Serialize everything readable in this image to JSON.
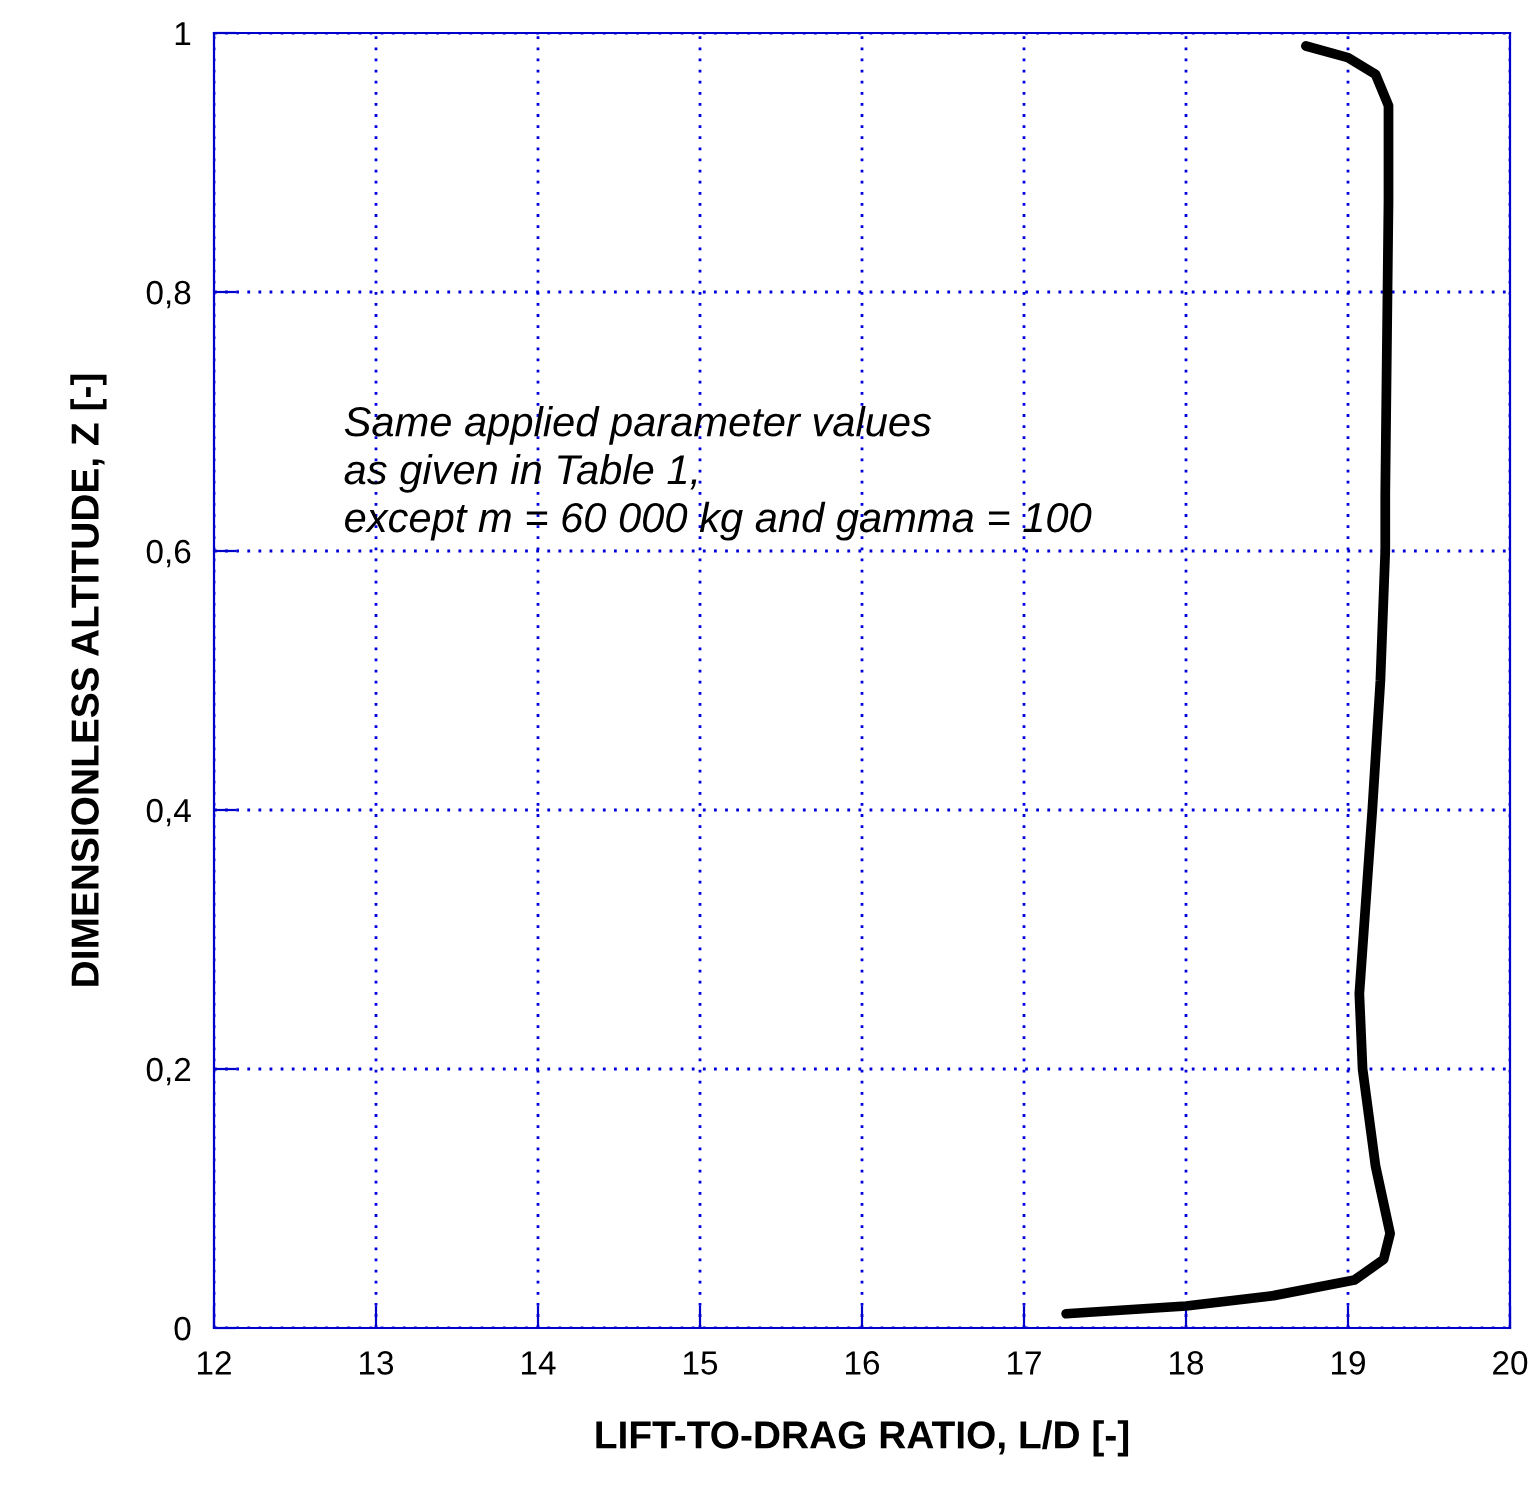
{
  "chart_data": {
    "type": "line",
    "xlabel": "LIFT-TO-DRAG RATIO, L/D [-]",
    "ylabel": "DIMENSIONLESS ALTITUDE, Z [-]",
    "annotations": [
      "Same applied parameter values\nas given in Table 1,\nexcept m = 60 000 kg and gamma = 100"
    ],
    "series": [
      {
        "color": "#000000",
        "x": [
          17.26,
          18.0,
          18.54,
          19.04,
          19.22,
          19.26,
          19.17,
          19.09,
          19.07,
          19.15,
          19.2,
          19.23,
          19.23,
          19.25,
          19.25,
          19.17,
          19.0,
          18.74
        ],
        "values": [
          0.011,
          0.017,
          0.025,
          0.037,
          0.053,
          0.073,
          0.125,
          0.2,
          0.258,
          0.4,
          0.5,
          0.6,
          0.644,
          0.87,
          0.944,
          0.968,
          0.981,
          0.99
        ]
      }
    ],
    "xlim": [
      12,
      20
    ],
    "xticks": [
      12,
      13,
      14,
      15,
      16,
      17,
      18,
      19,
      20
    ],
    "ylim": [
      0,
      1
    ],
    "yticks": [
      0,
      {
        "value": 0.2,
        "label": "0,2"
      },
      {
        "value": 0.4,
        "label": "0,4"
      },
      {
        "value": 0.6,
        "label": "0,6"
      },
      {
        "value": 0.8,
        "label": "0,8"
      },
      1
    ],
    "grid": true,
    "line_style": "solid",
    "marker": "none"
  }
}
